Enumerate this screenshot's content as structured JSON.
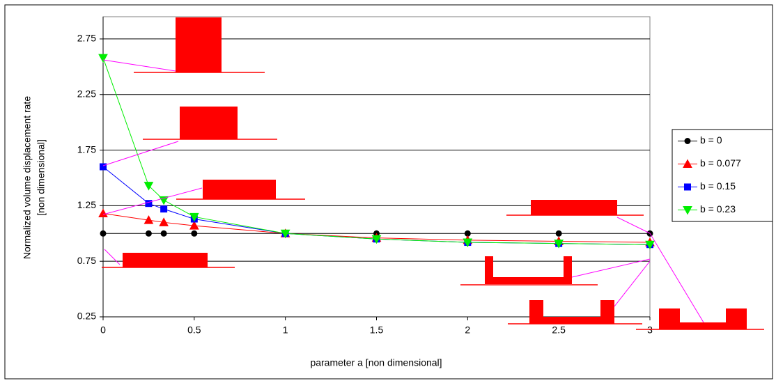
{
  "chart_data": {
    "type": "line",
    "xlabel": "parameter a [non dimensional]",
    "ylabel": [
      "Normalized volume displacement rate",
      "[non dimensional]"
    ],
    "x": [
      0,
      0.25,
      0.333,
      0.5,
      1,
      1.5,
      2,
      2.5,
      3
    ],
    "xlim": [
      0,
      3
    ],
    "xticks": [
      0,
      0.5,
      1,
      1.5,
      2,
      2.5,
      3
    ],
    "ylim": [
      0.25,
      2.95
    ],
    "yticks": [
      0.25,
      0.75,
      1.25,
      1.75,
      2.25,
      2.75
    ],
    "grid": true,
    "legend": "right",
    "series": [
      {
        "name": "b = 0",
        "color": "#000000",
        "marker": "circle",
        "values": [
          1,
          1,
          1,
          1,
          1,
          1,
          1,
          1,
          1
        ]
      },
      {
        "name": "b = 0.077",
        "color": "#ff0000",
        "marker": "triangle",
        "values": [
          1.18,
          1.12,
          1.1,
          1.07,
          1.0,
          0.96,
          0.94,
          0.93,
          0.92
        ]
      },
      {
        "name": "b = 0.15",
        "color": "#0000ff",
        "marker": "square",
        "values": [
          1.6,
          1.27,
          1.22,
          1.13,
          1.0,
          0.95,
          0.92,
          0.91,
          0.9
        ]
      },
      {
        "name": "b = 0.23",
        "color": "#00ee00",
        "marker": "triangle-down",
        "values": [
          2.58,
          1.43,
          1.3,
          1.15,
          1.0,
          0.95,
          0.92,
          0.91,
          0.9
        ]
      }
    ]
  }
}
